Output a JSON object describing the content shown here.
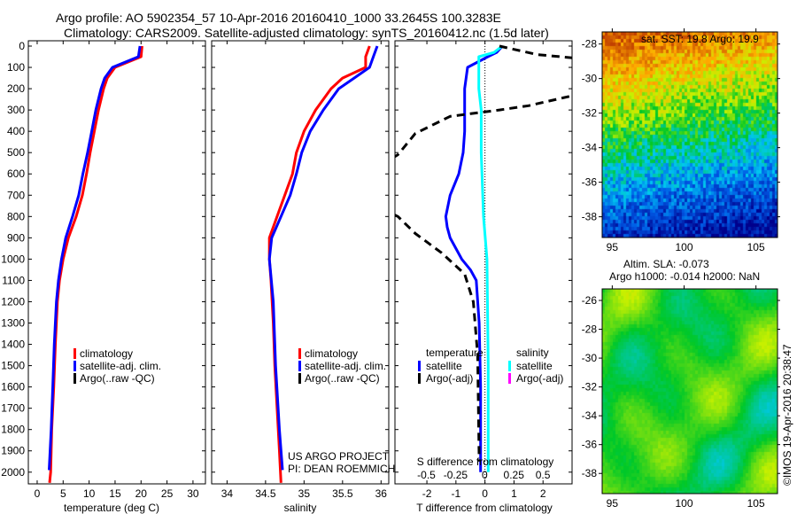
{
  "title_line1": "Argo profile: AO 5902354_57 10-Apr-2016 20160410_1000 33.2645S 100.3283E",
  "title_line2": "Climatology: CARS2009. Satellite-adjusted climatology: synTS_20160412.nc (1.5d later)",
  "credit_line1": "US ARGO PROJECT",
  "credit_line2": "PI: DEAN ROEMMICH",
  "timestamp": "©IMOS 19-Apr-2016 20:38:47",
  "colors": {
    "climatology": "#ff0000",
    "satellite": "#0000ff",
    "argo": "#000000",
    "salinity_sat": "#00ffff",
    "salinity_argo": "#ff00ff"
  },
  "chart_data": [
    {
      "type": "line",
      "id": "temperature",
      "xlabel": "temperature (deg C)",
      "ylabel": "",
      "xlim": [
        -1.7,
        32.4
      ],
      "ylim": [
        2055,
        -25
      ],
      "xticks": [
        0,
        5,
        10,
        15,
        20,
        25,
        30
      ],
      "yticks": [
        0,
        100,
        200,
        300,
        400,
        500,
        600,
        700,
        800,
        900,
        1000,
        1100,
        1200,
        1300,
        1400,
        1500,
        1600,
        1700,
        1800,
        1900,
        2000
      ],
      "legend": [
        "climatology",
        "satellite-adj. clim.",
        "Argo(..raw -QC)"
      ],
      "legend_placement": "lower-middle",
      "series": [
        {
          "name": "climatology",
          "color": "#ff0000",
          "x": [
            20.2,
            20.0,
            15.0,
            13.5,
            12.8,
            11.8,
            11.0,
            10.2,
            9.5,
            8.7,
            7.5,
            6.0,
            5.0,
            4.3,
            3.9,
            3.5,
            3.2,
            2.8,
            2.6,
            2.4
          ],
          "depth": [
            0,
            50,
            100,
            150,
            200,
            300,
            400,
            500,
            600,
            700,
            800,
            900,
            1000,
            1100,
            1200,
            1400,
            1600,
            1800,
            2000,
            2050
          ]
        },
        {
          "name": "satellite-adj. clim.",
          "color": "#0000ff",
          "x": [
            19.8,
            19.5,
            14.5,
            13.0,
            12.3,
            11.3,
            10.5,
            9.7,
            8.8,
            8.0,
            6.8,
            5.5,
            4.7,
            4.1,
            3.7,
            3.3,
            3.0,
            2.7,
            2.3
          ],
          "depth": [
            0,
            50,
            100,
            150,
            200,
            300,
            400,
            500,
            600,
            700,
            800,
            900,
            1000,
            1100,
            1200,
            1400,
            1600,
            1800,
            1990
          ]
        }
      ]
    },
    {
      "type": "line",
      "id": "salinity",
      "xlabel": "salinity",
      "xlim": [
        33.8,
        36.1
      ],
      "ylim": [
        2055,
        -25
      ],
      "xticks": [
        34,
        34.5,
        35,
        35.5,
        36
      ],
      "legend": [
        "climatology",
        "satellite-adj. clim.",
        "Argo(..raw -QC)"
      ],
      "legend_placement": "lower-middle",
      "series": [
        {
          "name": "climatology",
          "color": "#ff0000",
          "x": [
            35.85,
            35.8,
            35.8,
            35.5,
            35.35,
            35.15,
            35.0,
            34.9,
            34.85,
            34.75,
            34.65,
            34.55,
            34.55,
            34.57,
            34.6,
            34.62,
            34.65,
            34.68,
            34.7
          ],
          "depth": [
            0,
            50,
            100,
            150,
            200,
            300,
            400,
            500,
            600,
            700,
            800,
            900,
            1000,
            1100,
            1300,
            1500,
            1700,
            1900,
            2050
          ]
        },
        {
          "name": "satellite-adj. clim.",
          "color": "#0000ff",
          "x": [
            35.95,
            35.9,
            35.85,
            35.65,
            35.45,
            35.25,
            35.08,
            34.97,
            34.9,
            34.82,
            34.7,
            34.58,
            34.55,
            34.6,
            34.63,
            34.68,
            34.72
          ],
          "depth": [
            0,
            50,
            100,
            150,
            200,
            300,
            400,
            500,
            600,
            700,
            800,
            900,
            1000,
            1200,
            1500,
            1800,
            1990
          ]
        }
      ]
    },
    {
      "type": "line",
      "id": "difference",
      "xlabel": "T difference from climatology",
      "x2label": "S difference from climatology",
      "xlim": [
        -3.1,
        3.0
      ],
      "x2lim": [
        -0.77,
        0.75
      ],
      "ylim": [
        2055,
        -25
      ],
      "xticks": [
        -2,
        -1,
        0,
        1,
        2
      ],
      "x2ticks": [
        -0.5,
        -0.25,
        0,
        0.25,
        0.5
      ],
      "legend_temperature_title": "temperature",
      "legend_salinity_title": "salinity",
      "legend_temperature": [
        "satellite",
        "Argo(-adj)"
      ],
      "legend_salinity": [
        "satellite",
        "Argo(-adj)"
      ],
      "series": [
        {
          "name": "T satellite",
          "axis": "T",
          "color": "#0000ff",
          "dash": false,
          "x": [
            0.6,
            0.4,
            0.1,
            -0.6,
            -0.7,
            -0.7,
            -0.7,
            -0.75,
            -0.9,
            -1.2,
            -1.35,
            -1.3,
            -1.2,
            -0.8,
            -0.5,
            -0.3,
            -0.2,
            -0.15,
            -0.15
          ],
          "depth": [
            0,
            30,
            50,
            100,
            200,
            300,
            400,
            500,
            600,
            700,
            800,
            850,
            900,
            1000,
            1050,
            1100,
            1300,
            1600,
            2000
          ]
        },
        {
          "name": "S satellite",
          "axis": "S",
          "color": "#00ffff",
          "dash": false,
          "x": [
            0.15,
            0.08,
            -0.05,
            -0.05,
            -0.05,
            -0.03,
            -0.03,
            -0.01,
            0.02,
            0.03,
            0.03
          ],
          "depth": [
            0,
            30,
            50,
            100,
            200,
            300,
            500,
            800,
            1000,
            1500,
            2000
          ]
        },
        {
          "name": "T Argo(-adj)",
          "axis": "T",
          "color": "#000000",
          "dash": true,
          "x": [
            0.5,
            1.8,
            3.4,
            3.6,
            3.1,
            1.5,
            0.5,
            -1.2,
            -2.4,
            -3.0,
            -3.6,
            -3.6,
            -3.0,
            -2.4,
            -1.5,
            -0.7,
            -0.4,
            -0.25,
            -0.2
          ],
          "depth": [
            0,
            40,
            60,
            100,
            230,
            280,
            300,
            330,
            410,
            510,
            560,
            760,
            800,
            880,
            970,
            1070,
            1200,
            1450,
            1950
          ]
        }
      ]
    },
    {
      "type": "heatmap",
      "id": "sst_map",
      "title": "sat. SST: 19.8 Argo: 19.9",
      "xlim": [
        94.3,
        106.5
      ],
      "ylim": [
        -39.2,
        -27.3
      ],
      "xticks": [
        95,
        100,
        105
      ],
      "yticks": [
        -28,
        -30,
        -32,
        -34,
        -36,
        -38
      ]
    },
    {
      "type": "heatmap",
      "id": "sla_map",
      "title_line1": "Altim. SLA: -0.073",
      "title_line2": "Argo h1000: -0.014 h2000: NaN",
      "xlim": [
        94.3,
        106.5
      ],
      "ylim": [
        -39.4,
        -25.2
      ],
      "xticks": [
        95,
        100,
        105
      ],
      "yticks": [
        -26,
        -28,
        -30,
        -32,
        -34,
        -36,
        -38
      ]
    }
  ]
}
